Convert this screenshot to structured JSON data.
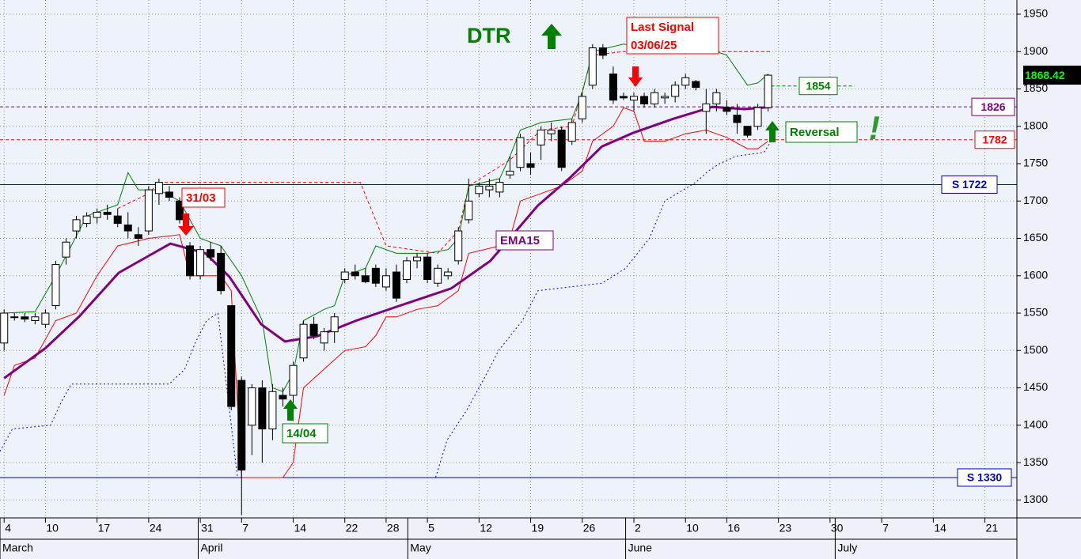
{
  "chart_data": {
    "type": "candlestick",
    "up_color": "#ffffff",
    "down_color": "#000000",
    "x": [
      0,
      1,
      2,
      3,
      4,
      5,
      6,
      7,
      8,
      9,
      10,
      11,
      12,
      13,
      14,
      15,
      16,
      17,
      18,
      19,
      20,
      21,
      22,
      23,
      24,
      25,
      26,
      27,
      28,
      29,
      30,
      31,
      32,
      33,
      34,
      35,
      36,
      37,
      38,
      39,
      40,
      41,
      42,
      43,
      44,
      45,
      46,
      47,
      48,
      49,
      50,
      51,
      52,
      53,
      54,
      55,
      56,
      57,
      58,
      59,
      60,
      61,
      62,
      63,
      64,
      65,
      66,
      67,
      68,
      69,
      70,
      71,
      72,
      73,
      74
    ],
    "open": [
      1510,
      1545,
      1545,
      1540,
      1535,
      1560,
      1625,
      1660,
      1670,
      1678,
      1685,
      1680,
      1668,
      1655,
      1660,
      1710,
      1712,
      1700,
      1640,
      1600,
      1635,
      1630,
      1560,
      1460,
      1400,
      1450,
      1395,
      1440,
      1440,
      1490,
      1535,
      1510,
      1525,
      1595,
      1605,
      1600,
      1610,
      1585,
      1605,
      1595,
      1620,
      1625,
      1590,
      1600,
      1620,
      1675,
      1710,
      1715,
      1712,
      1735,
      1745,
      1750,
      1775,
      1790,
      1795,
      1780,
      1810,
      1855,
      1905,
      1870,
      1840,
      1835,
      1840,
      1830,
      1838,
      1840,
      1855,
      1860,
      1820,
      1830,
      1825,
      1815,
      1800,
      1800,
      1825
    ],
    "high": [
      1555,
      1550,
      1550,
      1550,
      1555,
      1620,
      1650,
      1680,
      1685,
      1690,
      1695,
      1690,
      1685,
      1665,
      1720,
      1730,
      1720,
      1705,
      1645,
      1640,
      1645,
      1640,
      1560,
      1465,
      1455,
      1460,
      1455,
      1450,
      1485,
      1540,
      1545,
      1530,
      1550,
      1610,
      1615,
      1610,
      1615,
      1610,
      1615,
      1625,
      1630,
      1630,
      1615,
      1610,
      1665,
      1730,
      1725,
      1730,
      1730,
      1760,
      1790,
      1765,
      1800,
      1805,
      1800,
      1810,
      1845,
      1910,
      1910,
      1880,
      1845,
      1845,
      1845,
      1850,
      1845,
      1860,
      1870,
      1862,
      1850,
      1850,
      1835,
      1830,
      1800,
      1830,
      1870
    ],
    "low": [
      1500,
      1540,
      1538,
      1535,
      1530,
      1555,
      1615,
      1650,
      1665,
      1670,
      1675,
      1665,
      1650,
      1640,
      1655,
      1695,
      1700,
      1670,
      1595,
      1595,
      1620,
      1575,
      1420,
      1280,
      1360,
      1350,
      1380,
      1425,
      1430,
      1485,
      1515,
      1500,
      1510,
      1590,
      1595,
      1590,
      1585,
      1580,
      1565,
      1590,
      1610,
      1590,
      1585,
      1595,
      1615,
      1670,
      1705,
      1705,
      1705,
      1730,
      1740,
      1735,
      1755,
      1780,
      1740,
      1775,
      1805,
      1850,
      1890,
      1830,
      1835,
      1820,
      1825,
      1825,
      1830,
      1832,
      1850,
      1848,
      1790,
      1820,
      1815,
      1790,
      1785,
      1795,
      1820
    ],
    "close": [
      1550,
      1545,
      1542,
      1545,
      1550,
      1615,
      1645,
      1675,
      1680,
      1685,
      1682,
      1670,
      1660,
      1650,
      1715,
      1725,
      1705,
      1675,
      1600,
      1635,
      1625,
      1580,
      1425,
      1340,
      1450,
      1395,
      1445,
      1435,
      1480,
      1535,
      1520,
      1525,
      1545,
      1605,
      1600,
      1592,
      1590,
      1600,
      1570,
      1620,
      1625,
      1595,
      1610,
      1605,
      1660,
      1700,
      1720,
      1720,
      1725,
      1740,
      1785,
      1745,
      1795,
      1795,
      1745,
      1805,
      1840,
      1905,
      1895,
      1835,
      1838,
      1840,
      1830,
      1845,
      1840,
      1855,
      1865,
      1852,
      1830,
      1845,
      1820,
      1805,
      1788,
      1825,
      1868.42
    ],
    "overlays": [
      {
        "color": "#0000ff",
        "style": "dotted",
        "width": 1,
        "x": [
          -0.4,
          0.8,
          4.5,
          5.5,
          6.5,
          16,
          17.5,
          18.5,
          19.6,
          20.7,
          22.6,
          41.8,
          42.9,
          44.8,
          46.4,
          47.9,
          50.2,
          51.7,
          57.9,
          60.2,
          62.5,
          64,
          67,
          68.2,
          69.3,
          70.9,
          73.6,
          74.3
        ],
        "values": [
          1365,
          1395,
          1400,
          1430,
          1455,
          1455,
          1475,
          1510,
          1540,
          1550,
          1330,
          1330,
          1380,
          1420,
          1460,
          1500,
          1540,
          1580,
          1590,
          1610,
          1650,
          1700,
          1725,
          1740,
          1750,
          1760,
          1765,
          1780
        ]
      },
      {
        "color": "#ff0000",
        "style": "dashed",
        "width": 1,
        "x": [
          11,
          14,
          15,
          34.5,
          37,
          42,
          44,
          45,
          49,
          52,
          55,
          57,
          60,
          74.3
        ],
        "values": [
          1690,
          1710,
          1725,
          1725,
          1640,
          1630,
          1660,
          1720,
          1755,
          1795,
          1800,
          1895,
          1900,
          1900
        ]
      },
      {
        "color": "#008000",
        "style": "solid",
        "width": 1,
        "x": [
          0,
          3,
          5,
          8,
          11,
          12,
          13,
          15,
          17,
          19,
          21,
          23,
          25,
          26,
          27,
          28,
          29,
          31,
          32,
          33,
          35,
          36,
          38,
          41,
          43,
          44,
          45,
          48,
          49,
          50,
          52,
          55,
          56,
          57,
          60,
          62,
          64,
          68,
          70,
          72,
          73,
          74
        ],
        "values": [
          1550,
          1552,
          1600,
          1680,
          1695,
          1738,
          1715,
          1715,
          1700,
          1650,
          1640,
          1600,
          1540,
          1450,
          1445,
          1470,
          1540,
          1555,
          1560,
          1600,
          1610,
          1640,
          1630,
          1630,
          1635,
          1650,
          1720,
          1730,
          1760,
          1795,
          1805,
          1810,
          1845,
          1900,
          1910,
          1905,
          1900,
          1905,
          1895,
          1855,
          1858,
          1870
        ]
      },
      {
        "color": "#ff0000",
        "style": "solid",
        "width": 1,
        "x": [
          0,
          1,
          3,
          5,
          7,
          9,
          11,
          14,
          17,
          18,
          21,
          22,
          23,
          27,
          28,
          29,
          31,
          33,
          35,
          36,
          37,
          38,
          40,
          42,
          44,
          45,
          48,
          49,
          50,
          52,
          54,
          55,
          56,
          57,
          59,
          60,
          61,
          62,
          64,
          66,
          68,
          70,
          72,
          73,
          74
        ],
        "values": [
          1440,
          1480,
          1490,
          1540,
          1550,
          1600,
          1640,
          1650,
          1655,
          1600,
          1600,
          1580,
          1330,
          1330,
          1350,
          1450,
          1475,
          1500,
          1505,
          1520,
          1545,
          1545,
          1555,
          1560,
          1580,
          1630,
          1640,
          1650,
          1700,
          1710,
          1720,
          1730,
          1740,
          1780,
          1800,
          1825,
          1820,
          1780,
          1780,
          1790,
          1795,
          1785,
          1770,
          1770,
          1780
        ]
      },
      {
        "color": "#800080",
        "style": "solid",
        "width": 3,
        "x": [
          0,
          4,
          7.3,
          11.1,
          16.1,
          19.5,
          21.8,
          24.9,
          27.2,
          30.3,
          34.1,
          37.9,
          43.3,
          47.1,
          51.7,
          54.8,
          57.9,
          60.9,
          64.8,
          68.6,
          71.7,
          74.3
        ],
        "values": [
          1463,
          1503,
          1546,
          1604,
          1643,
          1630,
          1599,
          1535,
          1512,
          1519,
          1540,
          1558,
          1583,
          1620,
          1694,
          1731,
          1773,
          1791,
          1810,
          1826,
          1823,
          1826
        ]
      }
    ],
    "hlines": [
      {
        "value": 1722,
        "label": "S 1722",
        "color": "#0000cc",
        "style": "solid"
      },
      {
        "value": 1330,
        "label": "S 1330",
        "color": "#0000cc",
        "style": "solid"
      },
      {
        "value": 1826,
        "color": "#800080",
        "style": "dashed"
      },
      {
        "value": 1782,
        "color": "#ff0000",
        "style": "dashed"
      },
      {
        "value": 1854,
        "color": "#008000",
        "style": "dashed"
      }
    ],
    "last_price": 1868.42,
    "ylim": [
      1276,
      1969
    ],
    "yticks": [
      1300,
      1350,
      1400,
      1450,
      1500,
      1550,
      1600,
      1650,
      1700,
      1750,
      1800,
      1850,
      1900,
      1950
    ],
    "xlim": [
      -0.4,
      98.1
    ],
    "xticks": [
      {
        "value": 0,
        "label": "4"
      },
      {
        "value": 4,
        "label": "10"
      },
      {
        "value": 9,
        "label": "17"
      },
      {
        "value": 14,
        "label": "24"
      },
      {
        "value": 19,
        "label": "31"
      },
      {
        "value": 23,
        "label": "7"
      },
      {
        "value": 28,
        "label": "14"
      },
      {
        "value": 33,
        "label": "22"
      },
      {
        "value": 37,
        "label": "28"
      },
      {
        "value": 41,
        "label": "5"
      },
      {
        "value": 46,
        "label": "12"
      },
      {
        "value": 51,
        "label": "19"
      },
      {
        "value": 56,
        "label": "26"
      },
      {
        "value": 61,
        "label": "2"
      },
      {
        "value": 66,
        "label": "10"
      },
      {
        "value": 70,
        "label": "16"
      },
      {
        "value": 75,
        "label": "23"
      },
      {
        "value": 80,
        "label": "30"
      },
      {
        "value": 85,
        "label": "7"
      },
      {
        "value": 90,
        "label": "14"
      },
      {
        "value": 95,
        "label": "21"
      }
    ],
    "months": [
      {
        "value": -0.4,
        "label": "March"
      },
      {
        "value": 18.8,
        "label": "April"
      },
      {
        "value": 39.1,
        "label": "May"
      },
      {
        "value": 60.2,
        "label": "June"
      },
      {
        "value": 80.5,
        "label": "July"
      }
    ],
    "grid": true,
    "annotations": {
      "dtr": "DTR",
      "last_signal": "Last Signal",
      "last_signal_date": "03/06/25",
      "sell_date": "31/03",
      "buy_date": "14/04",
      "ema": "EMA15",
      "reversal": "Reversal",
      "exclaim": "!"
    }
  }
}
